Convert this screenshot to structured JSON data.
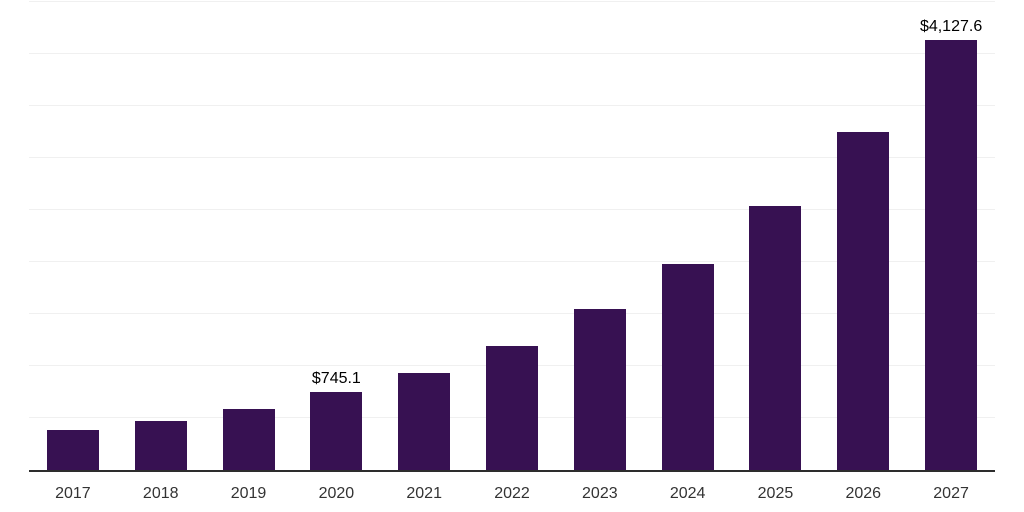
{
  "chart_data": {
    "type": "bar",
    "title": "",
    "xlabel": "",
    "ylabel": "",
    "categories": [
      "2017",
      "2018",
      "2019",
      "2020",
      "2021",
      "2022",
      "2023",
      "2024",
      "2025",
      "2026",
      "2027"
    ],
    "values": [
      379,
      466,
      590,
      745.1,
      930,
      1192,
      1540,
      1979,
      2532,
      3242,
      4127.6
    ],
    "data_labels": [
      "",
      "",
      "",
      "$745.1",
      "",
      "",
      "",
      "",
      "",
      "",
      "$4,127.6"
    ],
    "ylim": [
      0,
      4500
    ],
    "gridline_step": 500,
    "grid": true,
    "legend": false,
    "colors": {
      "bar": "#371152",
      "axis_line": "#2d2d2d",
      "gridline": "#f0f0f0",
      "tick_label": "#333333",
      "data_label": "#000000",
      "background": "#ffffff"
    }
  }
}
